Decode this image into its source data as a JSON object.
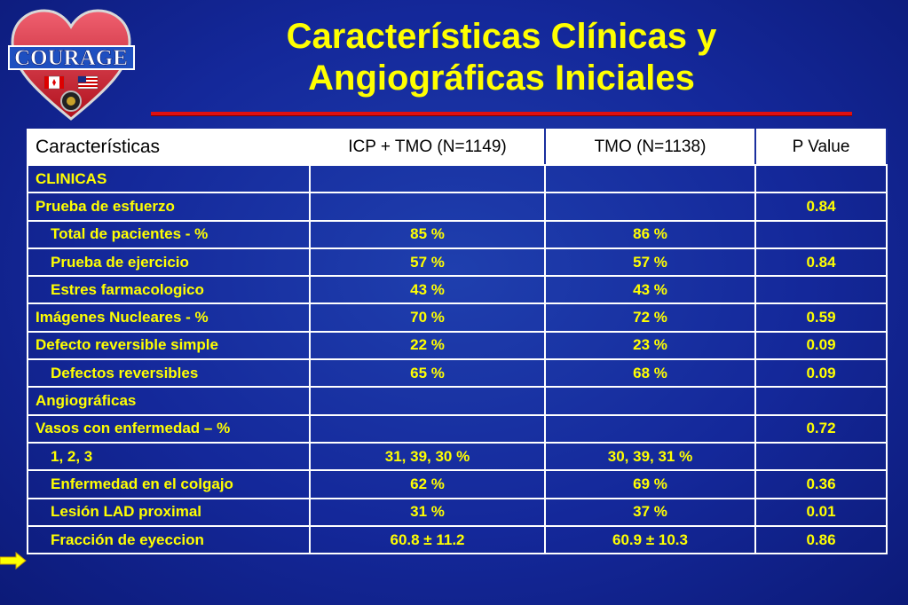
{
  "logo": {
    "text": "COURAGE"
  },
  "title": {
    "line1": "Características Clínicas y",
    "line2": "Angiográficas Iniciales"
  },
  "colors": {
    "background": "#14289a",
    "title": "#ffff00",
    "rule": "#e01010",
    "cell_text": "#ffff00",
    "border": "#ffffff"
  },
  "table": {
    "headers": [
      "Características",
      "ICP + TMO (N=1149)",
      "TMO (N=1138)",
      "P Value"
    ],
    "rows": [
      [
        "CLINICAS",
        "",
        "",
        ""
      ],
      [
        "Prueba de esfuerzo",
        "",
        "",
        "0.84"
      ],
      [
        "Total de pacientes - %",
        "85 %",
        "86 %",
        ""
      ],
      [
        "Prueba de ejercicio",
        "57 %",
        "57 %",
        "0.84"
      ],
      [
        "Estres farmacologico",
        "43 %",
        "43 %",
        ""
      ],
      [
        "Imágenes Nucleares - %",
        "70 %",
        "72 %",
        "0.59"
      ],
      [
        "Defecto reversible simple",
        "22 %",
        "23 %",
        "0.09"
      ],
      [
        "Defectos reversibles",
        "65 %",
        "68 %",
        "0.09"
      ],
      [
        "Angiográficas",
        "",
        "",
        ""
      ],
      [
        "Vasos con enfermedad – %",
        "",
        "",
        "0.72"
      ],
      [
        "1, 2, 3",
        "31, 39, 30 %",
        "30, 39, 31 %",
        ""
      ],
      [
        "Enfermedad en el colgajo",
        "62 %",
        "69 %",
        "0.36"
      ],
      [
        "Lesión LAD proximal",
        "31 %",
        "37 %",
        "0.01"
      ],
      [
        "Fracción de eyeccion",
        "60.8 ± 11.2",
        "60.9 ± 10.3",
        "0.86"
      ]
    ]
  },
  "pointer": {
    "icon": "arrow-right-icon",
    "color": "#ffff00"
  }
}
